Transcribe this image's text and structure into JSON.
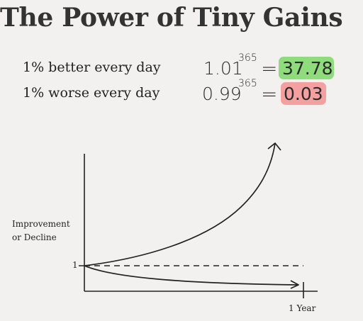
{
  "title": "The Power of Tiny Gains",
  "better": {
    "label": "1% better every day",
    "base": "1.01",
    "exponent": "365",
    "equals": "=",
    "result": "37.78",
    "highlight_color": "#8fdc7c"
  },
  "worse": {
    "label": "1% worse every day",
    "base": "0.99",
    "exponent": "365",
    "equals": "=",
    "result": "0.03",
    "highlight_color": "#f4a0a0"
  },
  "graph": {
    "y_axis_label_line1": "Improvement",
    "y_axis_label_line2": "or Decline",
    "baseline_tick_label": "1",
    "x_end_label": "1 Year"
  }
}
